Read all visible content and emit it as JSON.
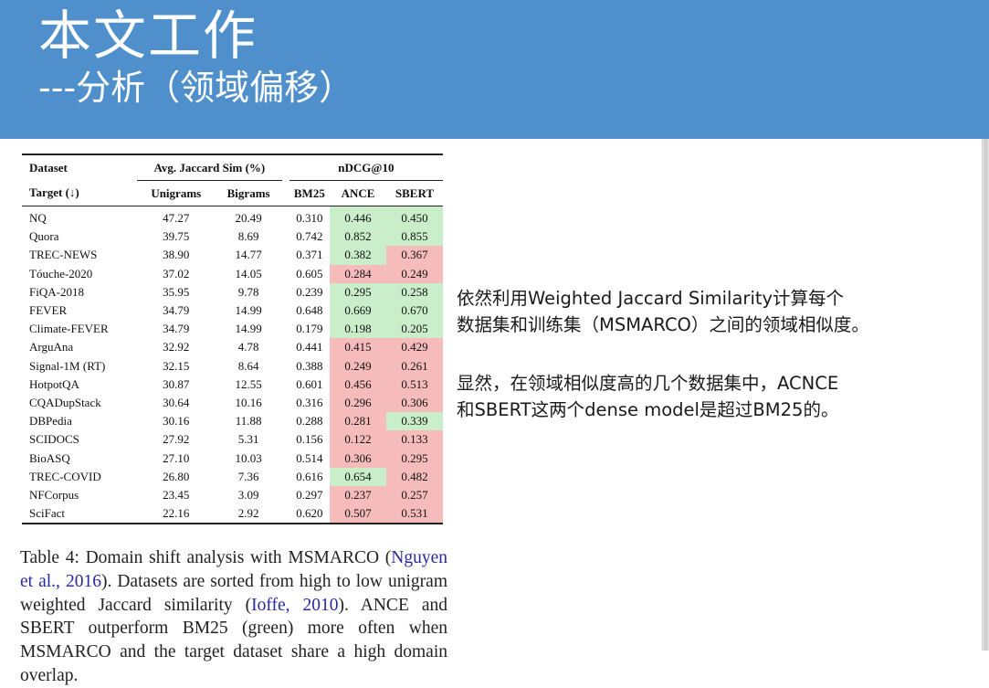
{
  "header": {
    "title": "本文工作",
    "subtitle": "---分析（领域偏移）"
  },
  "table": {
    "head1": {
      "dataset": "Dataset",
      "jaccard": "Avg. Jaccard Sim (%)",
      "ndcg": "nDCG@10"
    },
    "head2": {
      "target": "Target (↓)",
      "unigrams": "Unigrams",
      "bigrams": "Bigrams",
      "bm25": "BM25",
      "ance": "ANCE",
      "sbert": "SBERT"
    },
    "highlight_colors": {
      "green": "#c9eec9",
      "red": "#f6bcbc"
    },
    "rows": [
      {
        "name": "NQ",
        "uni": "47.27",
        "bi": "20.49",
        "bm25": "0.310",
        "ance": "0.446",
        "ance_c": "g",
        "sbert": "0.450",
        "sbert_c": "g"
      },
      {
        "name": "Quora",
        "uni": "39.75",
        "bi": "8.69",
        "bm25": "0.742",
        "ance": "0.852",
        "ance_c": "g",
        "sbert": "0.855",
        "sbert_c": "g"
      },
      {
        "name": "TREC-NEWS",
        "uni": "38.90",
        "bi": "14.77",
        "bm25": "0.371",
        "ance": "0.382",
        "ance_c": "g",
        "sbert": "0.367",
        "sbert_c": "r"
      },
      {
        "name": "Tóuche-2020",
        "uni": "37.02",
        "bi": "14.05",
        "bm25": "0.605",
        "ance": "0.284",
        "ance_c": "r",
        "sbert": "0.249",
        "sbert_c": "r"
      },
      {
        "name": "FiQA-2018",
        "uni": "35.95",
        "bi": "9.78",
        "bm25": "0.239",
        "ance": "0.295",
        "ance_c": "g",
        "sbert": "0.258",
        "sbert_c": "g"
      },
      {
        "name": "FEVER",
        "uni": "34.79",
        "bi": "14.99",
        "bm25": "0.648",
        "ance": "0.669",
        "ance_c": "g",
        "sbert": "0.670",
        "sbert_c": "g"
      },
      {
        "name": "Climate-FEVER",
        "uni": "34.79",
        "bi": "14.99",
        "bm25": "0.179",
        "ance": "0.198",
        "ance_c": "g",
        "sbert": "0.205",
        "sbert_c": "g"
      },
      {
        "name": "ArguAna",
        "uni": "32.92",
        "bi": "4.78",
        "bm25": "0.441",
        "ance": "0.415",
        "ance_c": "r",
        "sbert": "0.429",
        "sbert_c": "r"
      },
      {
        "name": "Signal-1M (RT)",
        "uni": "32.15",
        "bi": "8.64",
        "bm25": "0.388",
        "ance": "0.249",
        "ance_c": "r",
        "sbert": "0.261",
        "sbert_c": "r"
      },
      {
        "name": "HotpotQA",
        "uni": "30.87",
        "bi": "12.55",
        "bm25": "0.601",
        "ance": "0.456",
        "ance_c": "r",
        "sbert": "0.513",
        "sbert_c": "r"
      },
      {
        "name": "CQADupStack",
        "uni": "30.64",
        "bi": "10.16",
        "bm25": "0.316",
        "ance": "0.296",
        "ance_c": "r",
        "sbert": "0.306",
        "sbert_c": "r"
      },
      {
        "name": "DBPedia",
        "uni": "30.16",
        "bi": "11.88",
        "bm25": "0.288",
        "ance": "0.281",
        "ance_c": "r",
        "sbert": "0.339",
        "sbert_c": "g"
      },
      {
        "name": "SCIDOCS",
        "uni": "27.92",
        "bi": "5.31",
        "bm25": "0.156",
        "ance": "0.122",
        "ance_c": "r",
        "sbert": "0.133",
        "sbert_c": "r"
      },
      {
        "name": "BioASQ",
        "uni": "27.10",
        "bi": "10.03",
        "bm25": "0.514",
        "ance": "0.306",
        "ance_c": "r",
        "sbert": "0.295",
        "sbert_c": "r"
      },
      {
        "name": "TREC-COVID",
        "uni": "26.80",
        "bi": "7.36",
        "bm25": "0.616",
        "ance": "0.654",
        "ance_c": "g",
        "sbert": "0.482",
        "sbert_c": "r"
      },
      {
        "name": "NFCorpus",
        "uni": "23.45",
        "bi": "3.09",
        "bm25": "0.297",
        "ance": "0.237",
        "ance_c": "r",
        "sbert": "0.257",
        "sbert_c": "r"
      },
      {
        "name": "SciFact",
        "uni": "22.16",
        "bi": "2.92",
        "bm25": "0.620",
        "ance": "0.507",
        "ance_c": "r",
        "sbert": "0.531",
        "sbert_c": "r"
      }
    ]
  },
  "caption": {
    "p1": "Table 4: Domain shift analysis with MSMARCO (",
    "cite1": "Nguyen et al., 2016",
    "p2": "). Datasets are sorted from high to low unigram weighted Jaccard similarity (",
    "cite2": "Ioffe, 2010",
    "p3": "). ANCE and SBERT outperform BM25 (green) more often when MSMARCO and the target dataset share a high domain overlap."
  },
  "notes": {
    "n1_line1": "依然利用Weighted Jaccard Similarity计算每个",
    "n1_line2": "数据集和训练集（MSMARCO）之间的领域相似度。",
    "n2_line1": "显然，在领域相似度高的几个数据集中，ACNCE",
    "n2_line2": "和SBERT这两个dense model是超过BM25的。"
  }
}
